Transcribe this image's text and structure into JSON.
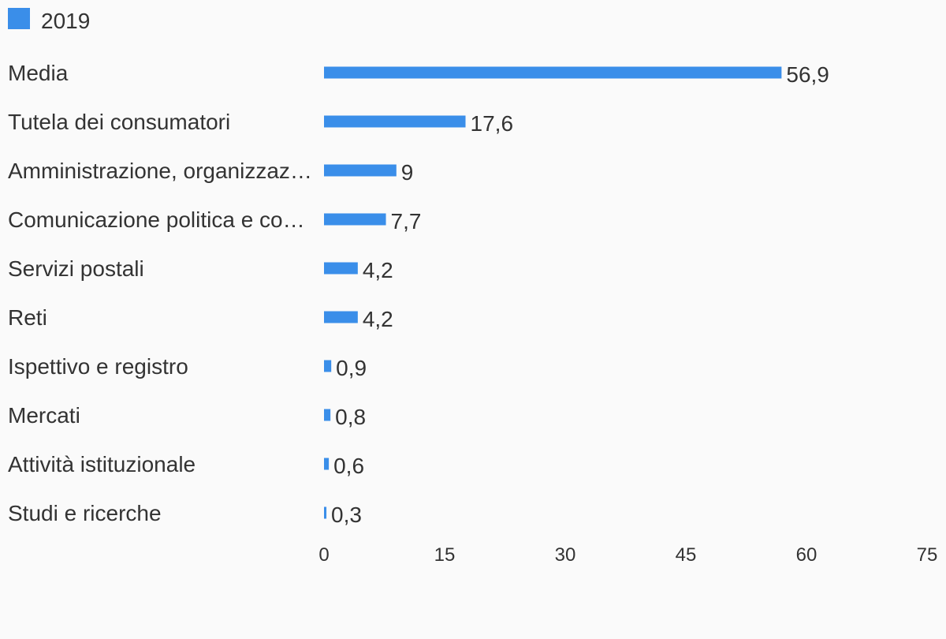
{
  "chart_data": {
    "type": "bar",
    "orientation": "horizontal",
    "legend": {
      "position": "top-left",
      "entries": [
        {
          "name": "2019",
          "color": "#3a8ee9"
        }
      ]
    },
    "categories": [
      "Media",
      "Tutela dei consumatori",
      "Amministrazione, organizzaz…",
      "Comunicazione politica e co…",
      "Servizi postali",
      "Reti",
      "Ispettivo e registro",
      "Mercati",
      "Attività istituzionale",
      "Studi e ricerche"
    ],
    "series": [
      {
        "name": "2019",
        "color": "#3a8ee9",
        "values": [
          56.9,
          17.6,
          9,
          7.7,
          4.2,
          4.2,
          0.9,
          0.8,
          0.6,
          0.3
        ],
        "value_labels": [
          "56,9",
          "17,6",
          "9",
          "7,7",
          "4,2",
          "4,2",
          "0,9",
          "0,8",
          "0,6",
          "0,3"
        ]
      }
    ],
    "xlim": [
      0,
      75
    ],
    "x_ticks": [
      0,
      15,
      30,
      45,
      60,
      75
    ],
    "x_tick_labels": [
      "0",
      "15",
      "30",
      "45",
      "60",
      "75"
    ],
    "grid": false
  }
}
